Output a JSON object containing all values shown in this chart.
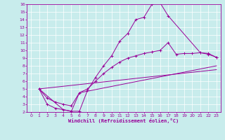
{
  "title": "",
  "xlabel": "Windchill (Refroidissement éolien,°C)",
  "bg_color": "#c8ecec",
  "line_color": "#990099",
  "grid_color": "#ffffff",
  "xlim": [
    -0.5,
    23.5
  ],
  "ylim": [
    2,
    16
  ],
  "xticks": [
    0,
    1,
    2,
    3,
    4,
    5,
    6,
    7,
    8,
    9,
    10,
    11,
    12,
    13,
    14,
    15,
    16,
    17,
    18,
    19,
    20,
    21,
    22,
    23
  ],
  "yticks": [
    2,
    3,
    4,
    5,
    6,
    7,
    8,
    9,
    10,
    11,
    12,
    13,
    14,
    15,
    16
  ],
  "series": [
    {
      "x": [
        1,
        2,
        3,
        4,
        5,
        6,
        7,
        8,
        9,
        10,
        11,
        12,
        13,
        14,
        15,
        16,
        17,
        21,
        22,
        23
      ],
      "y": [
        5,
        3,
        2.5,
        2.3,
        2.1,
        2.1,
        4.8,
        6.5,
        8.0,
        9.3,
        11.2,
        12.2,
        14.0,
        14.3,
        16.0,
        16.2,
        14.5,
        9.7,
        9.6,
        9.1
      ],
      "marker": true
    },
    {
      "x": [
        1,
        2,
        3,
        4,
        5,
        6,
        7,
        8,
        9,
        10,
        11,
        12,
        13,
        14,
        15,
        16,
        17,
        18,
        19,
        20,
        21,
        22,
        23
      ],
      "y": [
        5,
        3.8,
        3.3,
        3.0,
        2.8,
        4.5,
        5.0,
        6.0,
        7.0,
        7.8,
        8.5,
        9.0,
        9.3,
        9.6,
        9.8,
        10.0,
        11.0,
        9.5,
        9.6,
        9.6,
        9.7,
        9.5,
        9.1
      ],
      "marker": true
    },
    {
      "x": [
        1,
        4,
        5,
        6,
        23
      ],
      "y": [
        5,
        2.3,
        2.1,
        4.5,
        8.0
      ],
      "marker": false
    },
    {
      "x": [
        1,
        23
      ],
      "y": [
        5,
        7.5
      ],
      "marker": false
    }
  ]
}
